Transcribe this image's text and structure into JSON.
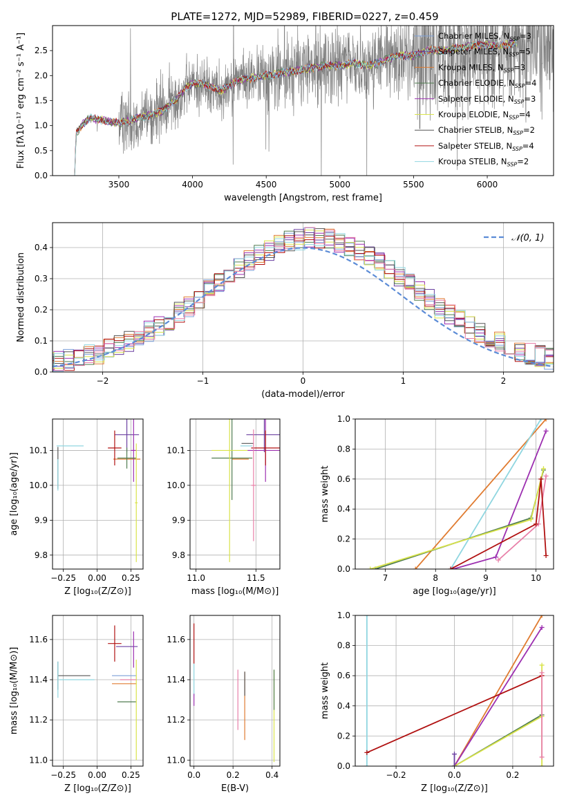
{
  "figure": {
    "title": "PLATE=1272, MJD=52989, FIBERID=0227, z=0.459"
  },
  "colors": {
    "Chabrier MILES": "#7b9fd9",
    "Salpeter MILES": "#6a3fa0",
    "Kroupa MILES": "#e07b30",
    "Chabrier ELODIE": "#4f7c4f",
    "Salpeter ELODIE": "#9c2fb0",
    "Kroupa ELODIE": "#d9e34a",
    "Chabrier STELIB": "#555555",
    "Salpeter STELIB": "#b01010",
    "Kroupa STELIB": "#8fd6e0",
    "extra_pink": "#e87fa8",
    "data": "#808080",
    "normal": "#5b8bd6"
  },
  "chart_data": [
    {
      "id": "spectrum",
      "type": "line",
      "title": "PLATE=1272, MJD=52989, FIBERID=0227, z=0.459",
      "xlabel": "wavelength [Angstrom, rest frame]",
      "ylabel": "Flux [fλ10⁻¹⁷ erg cm⁻² s⁻¹ A⁻¹]",
      "xlim": [
        3050,
        6450
      ],
      "ylim": [
        0,
        3.0
      ],
      "xticks": [
        3500,
        4000,
        4500,
        5000,
        5500,
        6000
      ],
      "yticks": [
        0.0,
        0.5,
        1.0,
        1.5,
        2.0,
        2.5
      ],
      "grid": false,
      "legend_position": "upper right",
      "legend": [
        {
          "label": "Chabrier MILES, N",
          "sub": "SSP",
          "val": "=3"
        },
        {
          "label": "Salpeter MILES, N",
          "sub": "SSP",
          "val": "=5"
        },
        {
          "label": "Kroupa MILES, N",
          "sub": "SSP",
          "val": "=3"
        },
        {
          "label": "Chabrier ELODIE, N",
          "sub": "SSP",
          "val": "=4"
        },
        {
          "label": "Salpeter ELODIE, N",
          "sub": "SSP",
          "val": "=3"
        },
        {
          "label": "Kroupa ELODIE, N",
          "sub": "SSP",
          "val": "=4"
        },
        {
          "label": "Chabrier STELIB, N",
          "sub": "SSP",
          "val": "=2"
        },
        {
          "label": "Salpeter STELIB, N",
          "sub": "SSP",
          "val": "=4"
        },
        {
          "label": "Kroupa STELIB, N",
          "sub": "SSP",
          "val": "=2"
        }
      ],
      "model_trend": {
        "x": [
          3200,
          3210,
          3260,
          3300,
          3400,
          3500,
          3600,
          3700,
          3800,
          3850,
          3900,
          3950,
          4000,
          4100,
          4200,
          4300,
          4400,
          4500,
          4600,
          4700,
          4800,
          4900,
          5000,
          5100,
          5200,
          5300,
          5400,
          5500,
          5600,
          5700,
          5800,
          5900,
          6000,
          6100,
          6200
        ],
        "y": [
          0.0,
          0.85,
          1.05,
          1.15,
          1.1,
          1.05,
          1.12,
          1.2,
          1.3,
          1.45,
          1.55,
          1.75,
          1.85,
          1.8,
          1.7,
          1.9,
          1.95,
          2.0,
          2.05,
          2.1,
          2.15,
          2.2,
          2.2,
          2.25,
          2.2,
          2.3,
          2.4,
          2.4,
          2.5,
          2.5,
          2.55,
          2.6,
          2.6,
          2.6,
          2.65
        ]
      }
    },
    {
      "id": "residuals",
      "type": "histogram",
      "xlabel": "(data-model)/error",
      "ylabel": "Normed distribution",
      "xlim": [
        -2.5,
        2.5
      ],
      "ylim": [
        0,
        0.48
      ],
      "xticks": [
        -2,
        -1,
        0,
        1,
        2
      ],
      "yticks": [
        0.0,
        0.1,
        0.2,
        0.3,
        0.4
      ],
      "grid": true,
      "legend": [
        "𝒩(0, 1)"
      ],
      "legend_position": "upper right",
      "bin_width": 0.1
    },
    {
      "id": "age_vs_Z",
      "type": "errorbar",
      "xlabel": "Z [log₁₀(Z/Z⊙)]",
      "ylabel": "age  [log₁₀(age/yr)]",
      "xlim": [
        -0.33,
        0.34
      ],
      "ylim": [
        9.76,
        10.19
      ],
      "xticks": [
        -0.25,
        0.0,
        0.25
      ],
      "yticks": [
        9.8,
        9.9,
        10.0,
        10.1
      ],
      "grid": true,
      "points": [
        {
          "model": "Kroupa MILES",
          "x": 0.22,
          "y": 10.075,
          "xerr": 0.1,
          "yerr": 0.0
        },
        {
          "model": "Salpeter MILES",
          "x": 0.22,
          "y": 10.145,
          "xerr": 0.09,
          "yerr": 0.05
        },
        {
          "model": "Salpeter ELODIE",
          "x": 0.27,
          "y": 10.1,
          "xerr": 0.02,
          "yerr": 0.09
        },
        {
          "model": "Chabrier ELODIE",
          "x": 0.22,
          "y": 10.078,
          "xerr": 0.07,
          "yerr": 0.03
        },
        {
          "model": "Salpeter STELIB",
          "x": 0.13,
          "y": 10.107,
          "xerr": 0.05,
          "yerr": 0.05
        },
        {
          "model": "Kroupa ELODIE",
          "x": 0.29,
          "y": 9.95,
          "xerr": 0.01,
          "yerr": 0.17
        },
        {
          "model": "Kroupa STELIB",
          "x": -0.2,
          "y": 10.113,
          "xerr": 0.1,
          "yerr": 0.0
        },
        {
          "model": "Chabrier STELIB",
          "x": -0.29,
          "y": 10.05,
          "xerr": 0.0,
          "yerr": 0.06
        },
        {
          "model": "Kroupa STELIB",
          "x": -0.29,
          "y": 10.03,
          "xerr": 0.0,
          "yerr": 0.045
        }
      ]
    },
    {
      "id": "age_vs_mass",
      "type": "errorbar",
      "xlabel": "mass [log₁₀(M/M⊙)]",
      "ylabel": "",
      "xlim": [
        10.95,
        11.7
      ],
      "ylim": [
        9.76,
        10.19
      ],
      "xticks": [
        11.0,
        11.5
      ],
      "yticks": [
        9.8,
        9.9,
        10.0,
        10.1
      ],
      "grid": true,
      "points": [
        {
          "model": "Kroupa MILES",
          "x": 11.37,
          "y": 10.075,
          "xerr": 0.07,
          "yerr": 0.0
        },
        {
          "model": "Salpeter MILES",
          "x": 11.57,
          "y": 10.145,
          "xerr": 0.15,
          "yerr": 0.05
        },
        {
          "model": "Salpeter ELODIE",
          "x": 11.58,
          "y": 10.1,
          "xerr": 0.15,
          "yerr": 0.09
        },
        {
          "model": "Chabrier ELODIE",
          "x": 11.3,
          "y": 10.078,
          "xerr": 0.17,
          "yerr": 0.12
        },
        {
          "model": "Salpeter STELIB",
          "x": 11.58,
          "y": 10.107,
          "xerr": 0.12,
          "yerr": 0.05
        },
        {
          "model": "Kroupa ELODIE",
          "x": 11.28,
          "y": 10.1,
          "xerr": 0.15,
          "yerr": 0.32
        },
        {
          "model": "Chabrier STELIB",
          "x": 11.43,
          "y": 10.12,
          "xerr": 0.05,
          "yerr": 0.0
        },
        {
          "model": "Kroupa STELIB",
          "x": 11.42,
          "y": 10.113,
          "xerr": 0.05,
          "yerr": 0.0
        },
        {
          "model": "extra_pink",
          "x": 11.48,
          "y": 10.0,
          "xerr": 0.02,
          "yerr": 0.16
        }
      ]
    },
    {
      "id": "weight_vs_age",
      "type": "line",
      "xlabel": "age  [log₁₀(age/yr)]",
      "ylabel": "mass weight",
      "xlim": [
        6.4,
        10.35
      ],
      "ylim": [
        0,
        1.0
      ],
      "xticks": [
        7,
        8,
        9,
        10
      ],
      "yticks": [
        0.0,
        0.2,
        0.4,
        0.6,
        0.8,
        1.0
      ],
      "grid": true,
      "series": [
        {
          "model": "Kroupa MILES",
          "x": [
            7.6,
            10.2
          ],
          "y": [
            0.0,
            1.0
          ]
        },
        {
          "model": "Salpeter ELODIE",
          "x": [
            8.35,
            9.2,
            10.2
          ],
          "y": [
            0.0,
            0.08,
            0.92
          ]
        },
        {
          "model": "Kroupa STELIB",
          "x": [
            8.3,
            10.1
          ],
          "y": [
            0.0,
            1.0
          ]
        },
        {
          "model": "Chabrier ELODIE",
          "x": [
            6.8,
            9.9,
            10.15
          ],
          "y": [
            0.0,
            0.34,
            0.66
          ]
        },
        {
          "model": "Kroupa ELODIE",
          "x": [
            6.7,
            9.9,
            10.15
          ],
          "y": [
            0.0,
            0.33,
            0.67
          ]
        },
        {
          "model": "extra_pink",
          "x": [
            9.25,
            10.05,
            10.2
          ],
          "y": [
            0.06,
            0.3,
            0.62
          ]
        },
        {
          "model": "Salpeter STELIB",
          "x": [
            8.3,
            10.0,
            10.1,
            10.2
          ],
          "y": [
            0.0,
            0.3,
            0.6,
            0.09
          ]
        }
      ]
    },
    {
      "id": "mass_vs_Z",
      "type": "errorbar",
      "xlabel": "Z [log₁₀(Z/Z⊙)]",
      "ylabel": "mass [log₁₀(M/M⊙)]",
      "xlim": [
        -0.33,
        0.34
      ],
      "ylim": [
        10.97,
        11.72
      ],
      "xticks": [
        -0.25,
        0.0,
        0.25
      ],
      "yticks": [
        11.0,
        11.2,
        11.4,
        11.6
      ],
      "grid": true,
      "points": [
        {
          "model": "Chabrier STELIB",
          "x": -0.17,
          "y": 11.42,
          "xerr": 0.12,
          "yerr": 0.0
        },
        {
          "model": "Chabrier STELIB",
          "x": -0.29,
          "y": 11.42,
          "xerr": 0.0,
          "yerr": 0.07
        },
        {
          "model": "Kroupa STELIB",
          "x": -0.15,
          "y": 11.4,
          "xerr": 0.13,
          "yerr": 0.0
        },
        {
          "model": "Kroupa STELIB",
          "x": -0.29,
          "y": 11.4,
          "xerr": 0.0,
          "yerr": 0.09
        },
        {
          "model": "Salpeter STELIB",
          "x": 0.13,
          "y": 11.58,
          "xerr": 0.05,
          "yerr": 0.09
        },
        {
          "model": "Salpeter MILES",
          "x": 0.22,
          "y": 11.565,
          "xerr": 0.08,
          "yerr": 0.0
        },
        {
          "model": "Salpeter ELODIE",
          "x": 0.27,
          "y": 11.55,
          "xerr": 0.0,
          "yerr": 0.09
        },
        {
          "model": "Chabrier MILES",
          "x": 0.2,
          "y": 11.42,
          "xerr": 0.09,
          "yerr": 0.0
        },
        {
          "model": "Kroupa MILES",
          "x": 0.2,
          "y": 11.38,
          "xerr": 0.09,
          "yerr": 0.0
        },
        {
          "model": "Chabrier ELODIE",
          "x": 0.22,
          "y": 11.29,
          "xerr": 0.07,
          "yerr": 0.0
        },
        {
          "model": "Kroupa ELODIE",
          "x": 0.29,
          "y": 11.25,
          "xerr": 0.0,
          "yerr": 0.25
        },
        {
          "model": "extra_pink",
          "x": 0.23,
          "y": 11.4,
          "xerr": 0.06,
          "yerr": 0.0
        }
      ]
    },
    {
      "id": "mass_vs_ebv",
      "type": "errorbar",
      "xlabel": "E(B-V)",
      "ylabel": "",
      "xlim": [
        -0.02,
        0.44
      ],
      "ylim": [
        10.97,
        11.72
      ],
      "xticks": [
        0.0,
        0.2,
        0.4
      ],
      "yticks": [
        11.0,
        11.2,
        11.4,
        11.6
      ],
      "grid": true,
      "points": [
        {
          "model": "Salpeter STELIB",
          "x": 0.0,
          "y": 11.58,
          "xerr": 0.0,
          "yerr": 0.1
        },
        {
          "model": "Kroupa STELIB",
          "x": 0.0,
          "y": 11.4,
          "xerr": 0.0,
          "yerr": 0.08
        },
        {
          "model": "Salpeter ELODIE",
          "x": 0.0,
          "y": 11.3,
          "xerr": 0.0,
          "yerr": 0.03
        },
        {
          "model": "extra_pink",
          "x": 0.225,
          "y": 11.3,
          "xerr": 0.0,
          "yerr": 0.15
        },
        {
          "model": "Kroupa MILES",
          "x": 0.26,
          "y": 11.27,
          "xerr": 0.0,
          "yerr": 0.17
        },
        {
          "model": "Chabrier STELIB",
          "x": 0.26,
          "y": 11.38,
          "xerr": 0.0,
          "yerr": 0.06
        },
        {
          "model": "Kroupa ELODIE",
          "x": 0.41,
          "y": 11.22,
          "xerr": 0.0,
          "yerr": 0.23
        },
        {
          "model": "Chabrier ELODIE",
          "x": 0.41,
          "y": 11.35,
          "xerr": 0.0,
          "yerr": 0.1
        }
      ]
    },
    {
      "id": "weight_vs_Z",
      "type": "line",
      "xlabel": "Z [log₁₀(Z/Z⊙)]",
      "ylabel": "mass weight",
      "xlim": [
        -0.34,
        0.34
      ],
      "ylim": [
        0,
        1.0
      ],
      "xticks": [
        -0.2,
        0.0,
        0.2
      ],
      "yticks": [
        0.0,
        0.2,
        0.4,
        0.6,
        0.8,
        1.0
      ],
      "grid": true,
      "series": [
        {
          "model": "Kroupa STELIB",
          "x": [
            -0.3,
            -0.3
          ],
          "y": [
            0.0,
            1.0
          ]
        },
        {
          "model": "Kroupa MILES",
          "x": [
            0.0,
            0.3
          ],
          "y": [
            0.0,
            1.0
          ]
        },
        {
          "model": "Salpeter ELODIE",
          "x": [
            0.0,
            0.3
          ],
          "y": [
            0.0,
            0.92
          ]
        },
        {
          "model": "Chabrier ELODIE",
          "x": [
            0.0,
            0.3
          ],
          "y": [
            0.0,
            0.34
          ]
        },
        {
          "model": "Kroupa ELODIE",
          "x": [
            0.0,
            0.3
          ],
          "y": [
            0.0,
            0.33
          ]
        },
        {
          "model": "Salpeter STELIB",
          "x": [
            -0.3,
            0.3
          ],
          "y": [
            0.09,
            0.6
          ]
        },
        {
          "model": "Kroupa ELODIE",
          "x": [
            0.3,
            0.3
          ],
          "y": [
            0.0,
            0.67
          ]
        },
        {
          "model": "extra_pink",
          "x": [
            0.3,
            0.3
          ],
          "y": [
            0.06,
            0.62
          ]
        },
        {
          "model": "Salpeter MILES",
          "x": [
            0.0,
            0.0
          ],
          "y": [
            0.0,
            0.08
          ]
        }
      ]
    }
  ]
}
